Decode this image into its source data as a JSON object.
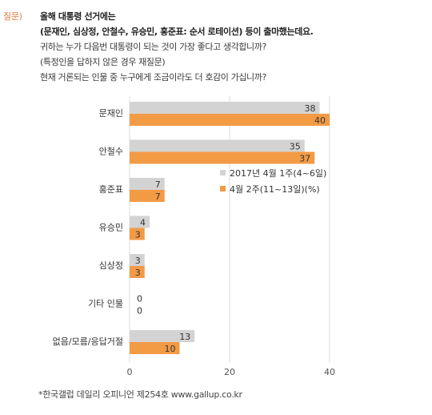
{
  "question": {
    "label": "질문)",
    "lines": [
      "올해 대통령 선거에는",
      "(문재인, 심상정, 안철수, 유승민, 홍준표: 순서 로테이션) 등이 출마했는데요.",
      "귀하는 누가 다음번 대통령이 되는 것이 가장 좋다고 생각합니까?",
      "(특정인을 답하지 않은 경우 재질문)",
      "현재 거론되는 인물 중 누구에게 조금이라도 더 호감이 가십니까?"
    ]
  },
  "chart_data": {
    "type": "bar",
    "orientation": "horizontal",
    "categories": [
      "문재인",
      "안철수",
      "홍준표",
      "유승민",
      "심상정",
      "기타 인물",
      "없음/모름/응답거절"
    ],
    "series": [
      {
        "name": "2017년 4월 1주(4~6일)",
        "values": [
          38,
          35,
          7,
          4,
          3,
          0,
          13
        ],
        "color": "#d3d3d3"
      },
      {
        "name": "4월 2주(11~13일)(%)",
        "values": [
          40,
          37,
          7,
          3,
          3,
          0,
          10
        ],
        "color": "#f39a45"
      }
    ],
    "x_ticks": [
      "0",
      "20",
      "40"
    ],
    "xlim": [
      0,
      40
    ],
    "grid": true,
    "legend_position": "right"
  },
  "footnote": "*한국갤럽 데일리 오피니언 제254호 www.gallup.co.kr"
}
